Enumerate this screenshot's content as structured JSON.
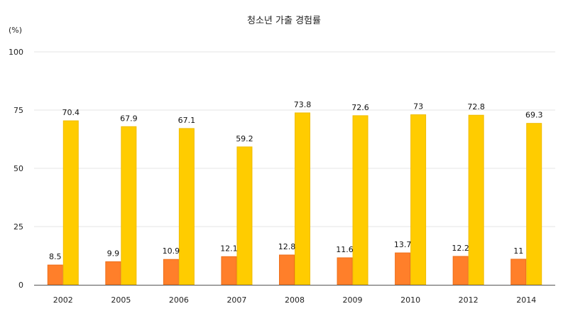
{
  "chart_data": {
    "type": "bar",
    "title": "청소년 가출 경험률",
    "ylabel": "(%)",
    "xlabel": "",
    "categories": [
      "2002",
      "2005",
      "2006",
      "2007",
      "2008",
      "2009",
      "2010",
      "2012",
      "2014"
    ],
    "series": [
      {
        "values": [
          8.5,
          9.9,
          10.9,
          12.1,
          12.8,
          11.6,
          13.7,
          12.2,
          11
        ],
        "color": "#FF7F2A"
      },
      {
        "values": [
          70.4,
          67.9,
          67.1,
          59.2,
          73.8,
          72.6,
          73,
          72.8,
          69.3
        ],
        "color": "#FFCC00"
      }
    ],
    "data_labels": [
      [
        "8.5",
        "9.9",
        "10.9",
        "12.1",
        "12.8",
        "11.6",
        "13.7",
        "12.2",
        "11"
      ],
      [
        "70.4",
        "67.9",
        "67.1",
        "59.2",
        "73.8",
        "72.6",
        "73",
        "72.8",
        "69.3"
      ]
    ],
    "yticks": [
      0,
      25,
      50,
      75,
      100
    ],
    "ytick_labels": [
      "0",
      "25",
      "50",
      "75",
      "100"
    ],
    "ylim": [
      0,
      100
    ],
    "grid": true,
    "legend": "none"
  }
}
